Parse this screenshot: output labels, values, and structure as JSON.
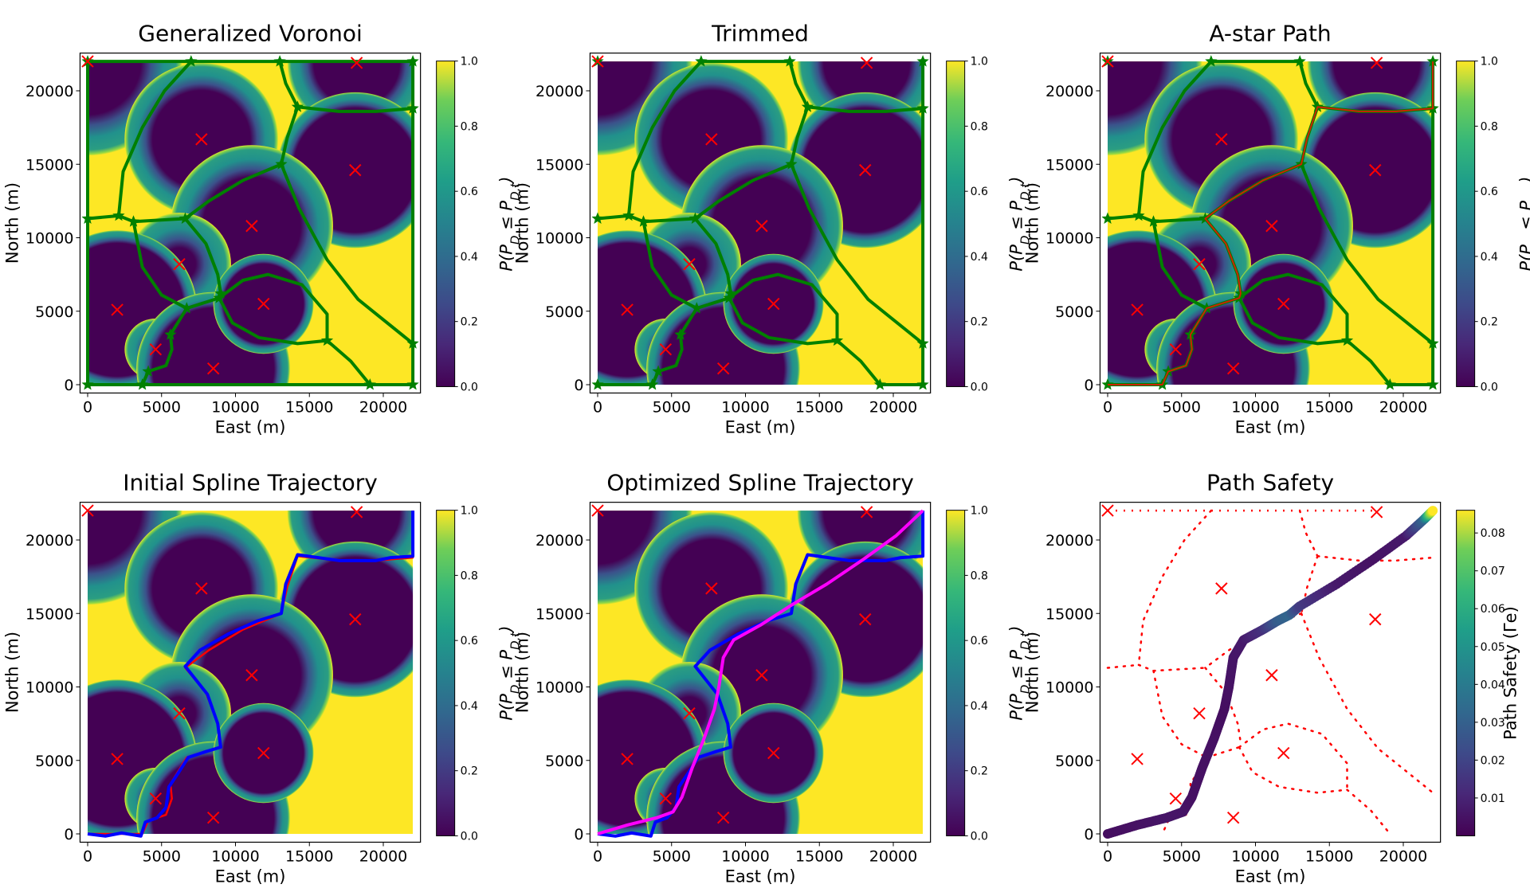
{
  "figure": {
    "panels": [
      {
        "id": "voronoi",
        "title": "Generalized Voronoi",
        "show_graph": true,
        "graph": "full",
        "show_astar": false,
        "show_initial": false,
        "show_optimized": false,
        "colorbar": "pd"
      },
      {
        "id": "trimmed",
        "title": "Trimmed",
        "show_graph": true,
        "graph": "trimmed",
        "show_astar": false,
        "show_initial": false,
        "show_optimized": false,
        "colorbar": "pd"
      },
      {
        "id": "astar",
        "title": "A-star Path",
        "show_graph": true,
        "graph": "trimmed",
        "show_astar": true,
        "show_initial": false,
        "show_optimized": false,
        "colorbar": "pd"
      },
      {
        "id": "initial",
        "title": "Initial Spline Trajectory",
        "show_graph": false,
        "show_astar": true,
        "show_initial": true,
        "show_optimized": false,
        "colorbar": "pd"
      },
      {
        "id": "optimized",
        "title": "Optimized Spline Trajectory",
        "show_graph": false,
        "show_astar": false,
        "show_initial": true,
        "show_optimized": true,
        "colorbar": "pd"
      },
      {
        "id": "safety",
        "title": "Path Safety",
        "show_graph": false,
        "show_astar": false,
        "show_initial": false,
        "show_optimized": false,
        "colorbar": "safety"
      }
    ]
  },
  "chart_data": {
    "type": "heatmap",
    "xlabel": "East (m)",
    "ylabel": "North (m)",
    "xlim": [
      -1000,
      23000
    ],
    "ylim": [
      -1000,
      23000
    ],
    "domain": [
      0,
      22000
    ],
    "xticks": [
      0,
      5000,
      10000,
      15000,
      20000
    ],
    "yticks": [
      0,
      5000,
      10000,
      15000,
      20000
    ],
    "colormap": "viridis",
    "colorbar_pd": {
      "label": "P(P_D ≤ P_D,t)",
      "range": [
        0.0,
        1.0
      ],
      "ticks": [
        "0.0",
        "0.2",
        "0.4",
        "0.6",
        "0.8",
        "1.0"
      ]
    },
    "colorbar_safety": {
      "label": "Path Safety (Γe)",
      "range": [
        0.0,
        0.086
      ],
      "ticks": [
        "0.01",
        "0.02",
        "0.03",
        "0.04",
        "0.05",
        "0.06",
        "0.07",
        "0.08"
      ],
      "tick_values": [
        0.01,
        0.02,
        0.03,
        0.04,
        0.05,
        0.06,
        0.07,
        0.08
      ]
    },
    "threats": [
      {
        "x": 0,
        "y": 22000,
        "r_dark": 3600,
        "r_edge": 6400
      },
      {
        "x": 7700,
        "y": 16700,
        "r_dark": 3300,
        "r_edge": 5200
      },
      {
        "x": 18200,
        "y": 21900,
        "r_dark": 2900,
        "r_edge": 4700
      },
      {
        "x": 18100,
        "y": 14600,
        "r_dark": 4200,
        "r_edge": 5300
      },
      {
        "x": 11100,
        "y": 10800,
        "r_dark": 3300,
        "r_edge": 5500
      },
      {
        "x": 6200,
        "y": 8200,
        "r_dark": 1100,
        "r_edge": 3500
      },
      {
        "x": 2000,
        "y": 5100,
        "r_dark": 4500,
        "r_edge": 5400
      },
      {
        "x": 4600,
        "y": 2400,
        "r_dark": 500,
        "r_edge": 2100
      },
      {
        "x": 8500,
        "y": 1100,
        "r_dark": 4100,
        "r_edge": 5200
      },
      {
        "x": 11900,
        "y": 5500,
        "r_dark": 2700,
        "r_edge": 3400
      }
    ],
    "graph_nodes": [
      [
        0,
        22000
      ],
      [
        7000,
        22000
      ],
      [
        13000,
        22000
      ],
      [
        22000,
        22000
      ],
      [
        14200,
        18900
      ],
      [
        22000,
        18800
      ],
      [
        13100,
        15000
      ],
      [
        0,
        11300
      ],
      [
        2100,
        11500
      ],
      [
        3100,
        11100
      ],
      [
        6600,
        11300
      ],
      [
        9000,
        6200
      ],
      [
        8900,
        5900
      ],
      [
        6700,
        5200
      ],
      [
        5600,
        3400
      ],
      [
        4100,
        900
      ],
      [
        16200,
        3000
      ],
      [
        22000,
        2800
      ],
      [
        0,
        0
      ],
      [
        3700,
        0
      ],
      [
        19100,
        0
      ],
      [
        22000,
        0
      ]
    ],
    "graph_edges": [
      [
        [
          0,
          0
        ],
        [
          0,
          22000
        ]
      ],
      [
        [
          0,
          22000
        ],
        [
          22000,
          22000
        ]
      ],
      [
        [
          22000,
          22000
        ],
        [
          22000,
          0
        ]
      ],
      [
        [
          0,
          0
        ],
        [
          22000,
          0
        ]
      ],
      [
        [
          7000,
          22000
        ],
        [
          5200,
          20000
        ],
        [
          3700,
          17500
        ],
        [
          2400,
          14500
        ],
        [
          2100,
          11500
        ]
      ],
      [
        [
          13000,
          22000
        ],
        [
          13400,
          20500
        ],
        [
          14200,
          18900
        ]
      ],
      [
        [
          14200,
          18900
        ],
        [
          17000,
          18600
        ],
        [
          19500,
          18600
        ],
        [
          22000,
          18800
        ]
      ],
      [
        [
          14200,
          18900
        ],
        [
          13500,
          16800
        ],
        [
          13100,
          15000
        ]
      ],
      [
        [
          13100,
          15000
        ],
        [
          10500,
          13900
        ],
        [
          8200,
          12500
        ],
        [
          6600,
          11300
        ]
      ],
      [
        [
          13100,
          15000
        ],
        [
          14300,
          12000
        ],
        [
          16200,
          8500
        ],
        [
          18300,
          5800
        ],
        [
          22000,
          2800
        ]
      ],
      [
        [
          0,
          11300
        ],
        [
          2100,
          11500
        ]
      ],
      [
        [
          2100,
          11500
        ],
        [
          3100,
          11100
        ]
      ],
      [
        [
          3100,
          11100
        ],
        [
          6600,
          11300
        ]
      ],
      [
        [
          6600,
          11300
        ],
        [
          8000,
          9600
        ],
        [
          8800,
          7500
        ],
        [
          9000,
          6200
        ]
      ],
      [
        [
          3100,
          11100
        ],
        [
          3700,
          8000
        ],
        [
          5000,
          6100
        ],
        [
          6700,
          5200
        ]
      ],
      [
        [
          6700,
          5200
        ],
        [
          8900,
          5900
        ]
      ],
      [
        [
          8900,
          5900
        ],
        [
          10500,
          7100
        ],
        [
          12200,
          7500
        ],
        [
          14500,
          6800
        ],
        [
          16200,
          4800
        ],
        [
          16200,
          3000
        ]
      ],
      [
        [
          8900,
          5900
        ],
        [
          9800,
          4200
        ],
        [
          11600,
          3200
        ],
        [
          14200,
          2800
        ],
        [
          16200,
          3000
        ]
      ],
      [
        [
          16200,
          3000
        ],
        [
          17800,
          1600
        ],
        [
          19100,
          0
        ]
      ],
      [
        [
          6700,
          5200
        ],
        [
          5600,
          3400
        ]
      ],
      [
        [
          5600,
          3400
        ],
        [
          5700,
          2400
        ],
        [
          5300,
          1300
        ],
        [
          4100,
          900
        ]
      ],
      [
        [
          4100,
          900
        ],
        [
          3700,
          0
        ]
      ]
    ],
    "trimmed_remove": [
      0,
      1,
      3
    ],
    "trimmed_extra_edges": [
      [
        [
          0,
          22000
        ],
        [
          0,
          22000
        ]
      ],
      [
        [
          7000,
          22000
        ],
        [
          13000,
          22000
        ]
      ],
      [
        [
          0,
          0
        ],
        [
          3700,
          0
        ]
      ],
      [
        [
          19100,
          0
        ],
        [
          22000,
          0
        ]
      ]
    ],
    "astar_path": [
      [
        0,
        0
      ],
      [
        3700,
        0
      ],
      [
        4100,
        900
      ],
      [
        5300,
        1300
      ],
      [
        5700,
        2400
      ],
      [
        5600,
        3400
      ],
      [
        6700,
        5200
      ],
      [
        8900,
        5900
      ],
      [
        9000,
        6200
      ],
      [
        8800,
        7500
      ],
      [
        8000,
        9600
      ],
      [
        6600,
        11300
      ],
      [
        8200,
        12500
      ],
      [
        10500,
        13900
      ],
      [
        13100,
        15000
      ],
      [
        13500,
        16800
      ],
      [
        14200,
        18900
      ],
      [
        17000,
        18600
      ],
      [
        19500,
        18600
      ],
      [
        22000,
        18800
      ],
      [
        22000,
        22000
      ]
    ],
    "initial_spline": [
      [
        0,
        0
      ],
      [
        1200,
        -150
      ],
      [
        2300,
        60
      ],
      [
        3600,
        -150
      ],
      [
        3900,
        800
      ],
      [
        4700,
        1100
      ],
      [
        5300,
        1800
      ],
      [
        5500,
        3200
      ],
      [
        6100,
        4100
      ],
      [
        6800,
        5200
      ],
      [
        8000,
        5600
      ],
      [
        9000,
        5900
      ],
      [
        8800,
        7500
      ],
      [
        8100,
        9500
      ],
      [
        6600,
        11400
      ],
      [
        7600,
        12500
      ],
      [
        9500,
        13600
      ],
      [
        11500,
        14500
      ],
      [
        13100,
        15000
      ],
      [
        13400,
        17000
      ],
      [
        14200,
        19000
      ],
      [
        17000,
        18600
      ],
      [
        19500,
        18600
      ],
      [
        20500,
        18800
      ],
      [
        22000,
        18900
      ],
      [
        22000,
        22000
      ]
    ],
    "optimized_spline": [
      [
        0,
        0
      ],
      [
        2000,
        600
      ],
      [
        4000,
        1100
      ],
      [
        5100,
        1500
      ],
      [
        5700,
        2500
      ],
      [
        6400,
        4500
      ],
      [
        7200,
        6500
      ],
      [
        7900,
        8500
      ],
      [
        8200,
        10000
      ],
      [
        8500,
        12000
      ],
      [
        9200,
        13200
      ],
      [
        11000,
        14200
      ],
      [
        13000,
        15500
      ],
      [
        15500,
        17000
      ],
      [
        18000,
        18700
      ],
      [
        20200,
        20300
      ],
      [
        22000,
        22000
      ]
    ],
    "safety_values_note": "path colored by safety value; max ~0.086 at end, ~0.03 near (12000,14700), ~0.005 elsewhere",
    "safety_points": [
      [
        0,
        0,
        0.003
      ],
      [
        2000,
        600,
        0.004
      ],
      [
        4000,
        1100,
        0.005
      ],
      [
        5100,
        1500,
        0.005
      ],
      [
        5700,
        2500,
        0.004
      ],
      [
        6400,
        4500,
        0.004
      ],
      [
        7200,
        6500,
        0.004
      ],
      [
        7900,
        8500,
        0.003
      ],
      [
        8200,
        10000,
        0.004
      ],
      [
        8500,
        12000,
        0.005
      ],
      [
        9200,
        13200,
        0.006
      ],
      [
        10500,
        13900,
        0.012
      ],
      [
        11500,
        14500,
        0.025
      ],
      [
        12300,
        14900,
        0.028
      ],
      [
        13000,
        15500,
        0.015
      ],
      [
        15500,
        17000,
        0.006
      ],
      [
        18000,
        18700,
        0.004
      ],
      [
        20200,
        20300,
        0.006
      ],
      [
        21400,
        21400,
        0.028
      ],
      [
        22000,
        22000,
        0.086
      ]
    ]
  }
}
